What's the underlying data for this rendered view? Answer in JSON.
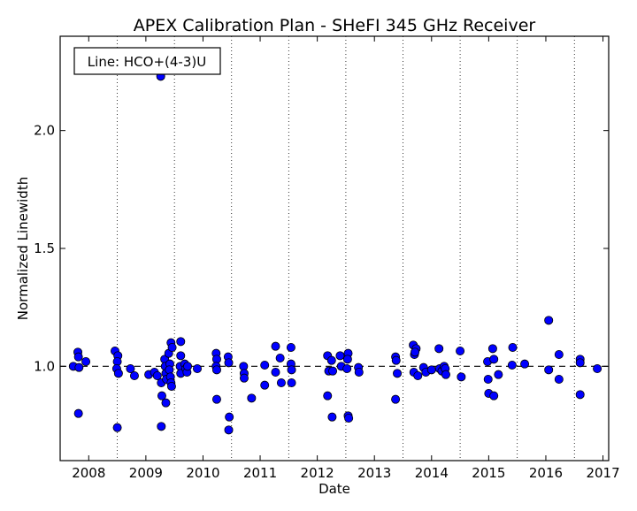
{
  "chart_data": {
    "type": "scatter",
    "title": "APEX Calibration Plan - SHeFI 345 GHz Receiver",
    "xlabel": "Date",
    "ylabel": "Normalized Linewidth",
    "annotation": "Line: HCO+(4-3)U",
    "xlim": [
      2007.5,
      2017.1
    ],
    "ylim": [
      0.6,
      2.4
    ],
    "xticks": [
      2008,
      2009,
      2010,
      2011,
      2012,
      2013,
      2014,
      2015,
      2016,
      2017
    ],
    "xtick_labels": [
      "2008",
      "2009",
      "2010",
      "2011",
      "2012",
      "2013",
      "2014",
      "2015",
      "2016",
      "2017"
    ],
    "yticks": [
      1.0,
      1.5,
      2.0
    ],
    "ytick_labels": [
      "1.0",
      "1.5",
      "2.0"
    ],
    "reference_line": 1.0,
    "vertical_gridlines": [
      2008.5,
      2009.5,
      2010.5,
      2011.5,
      2012.5,
      2013.5,
      2014.5,
      2015.5,
      2016.5
    ],
    "marker_color": "#0000ff",
    "points": [
      {
        "x": 2007.73,
        "y": 1.0
      },
      {
        "x": 2007.81,
        "y": 1.06
      },
      {
        "x": 2007.82,
        "y": 1.04
      },
      {
        "x": 2007.83,
        "y": 0.995
      },
      {
        "x": 2007.82,
        "y": 0.8
      },
      {
        "x": 2007.95,
        "y": 1.02
      },
      {
        "x": 2008.46,
        "y": 1.065
      },
      {
        "x": 2008.51,
        "y": 1.045
      },
      {
        "x": 2008.5,
        "y": 1.02
      },
      {
        "x": 2008.49,
        "y": 0.99
      },
      {
        "x": 2008.52,
        "y": 0.97
      },
      {
        "x": 2008.5,
        "y": 0.74
      },
      {
        "x": 2008.73,
        "y": 0.99
      },
      {
        "x": 2008.8,
        "y": 0.96
      },
      {
        "x": 2009.05,
        "y": 0.965
      },
      {
        "x": 2009.15,
        "y": 0.975
      },
      {
        "x": 2009.2,
        "y": 0.96
      },
      {
        "x": 2009.26,
        "y": 2.23
      },
      {
        "x": 2009.27,
        "y": 0.93
      },
      {
        "x": 2009.28,
        "y": 0.875
      },
      {
        "x": 2009.27,
        "y": 0.745
      },
      {
        "x": 2009.33,
        "y": 1.03
      },
      {
        "x": 2009.34,
        "y": 1.0
      },
      {
        "x": 2009.35,
        "y": 0.97
      },
      {
        "x": 2009.36,
        "y": 0.945
      },
      {
        "x": 2009.35,
        "y": 0.845
      },
      {
        "x": 2009.4,
        "y": 1.055
      },
      {
        "x": 2009.42,
        "y": 1.01
      },
      {
        "x": 2009.41,
        "y": 0.985
      },
      {
        "x": 2009.43,
        "y": 0.955
      },
      {
        "x": 2009.44,
        "y": 0.93
      },
      {
        "x": 2009.44,
        "y": 1.1
      },
      {
        "x": 2009.45,
        "y": 0.915
      },
      {
        "x": 2009.46,
        "y": 1.08
      },
      {
        "x": 2009.61,
        "y": 1.105
      },
      {
        "x": 2009.61,
        "y": 1.045
      },
      {
        "x": 2009.6,
        "y": 1.0
      },
      {
        "x": 2009.61,
        "y": 0.97
      },
      {
        "x": 2009.68,
        "y": 1.01
      },
      {
        "x": 2009.7,
        "y": 0.99
      },
      {
        "x": 2009.72,
        "y": 0.975
      },
      {
        "x": 2009.73,
        "y": 1.0
      },
      {
        "x": 2009.9,
        "y": 0.99
      },
      {
        "x": 2010.23,
        "y": 1.055
      },
      {
        "x": 2010.24,
        "y": 1.03
      },
      {
        "x": 2010.23,
        "y": 1.0
      },
      {
        "x": 2010.24,
        "y": 0.985
      },
      {
        "x": 2010.24,
        "y": 0.86
      },
      {
        "x": 2010.44,
        "y": 1.04
      },
      {
        "x": 2010.45,
        "y": 1.015
      },
      {
        "x": 2010.46,
        "y": 0.785
      },
      {
        "x": 2010.45,
        "y": 0.73
      },
      {
        "x": 2010.71,
        "y": 1.0
      },
      {
        "x": 2010.72,
        "y": 0.97
      },
      {
        "x": 2010.72,
        "y": 0.95
      },
      {
        "x": 2010.85,
        "y": 0.865
      },
      {
        "x": 2011.08,
        "y": 1.005
      },
      {
        "x": 2011.08,
        "y": 0.92
      },
      {
        "x": 2011.27,
        "y": 1.085
      },
      {
        "x": 2011.27,
        "y": 0.975
      },
      {
        "x": 2011.35,
        "y": 1.035
      },
      {
        "x": 2011.37,
        "y": 0.93
      },
      {
        "x": 2011.54,
        "y": 1.08
      },
      {
        "x": 2011.54,
        "y": 1.01
      },
      {
        "x": 2011.55,
        "y": 0.985
      },
      {
        "x": 2011.55,
        "y": 0.93
      },
      {
        "x": 2012.18,
        "y": 1.045
      },
      {
        "x": 2012.2,
        "y": 0.98
      },
      {
        "x": 2012.18,
        "y": 0.875
      },
      {
        "x": 2012.25,
        "y": 1.025
      },
      {
        "x": 2012.27,
        "y": 0.98
      },
      {
        "x": 2012.26,
        "y": 0.785
      },
      {
        "x": 2012.4,
        "y": 1.045
      },
      {
        "x": 2012.42,
        "y": 1.0
      },
      {
        "x": 2012.54,
        "y": 1.055
      },
      {
        "x": 2012.53,
        "y": 1.03
      },
      {
        "x": 2012.52,
        "y": 0.99
      },
      {
        "x": 2012.54,
        "y": 0.79
      },
      {
        "x": 2012.55,
        "y": 0.78
      },
      {
        "x": 2012.72,
        "y": 0.995
      },
      {
        "x": 2012.73,
        "y": 0.975
      },
      {
        "x": 2013.37,
        "y": 1.04
      },
      {
        "x": 2013.38,
        "y": 1.025
      },
      {
        "x": 2013.4,
        "y": 0.97
      },
      {
        "x": 2013.37,
        "y": 0.86
      },
      {
        "x": 2013.68,
        "y": 1.09
      },
      {
        "x": 2013.73,
        "y": 1.075
      },
      {
        "x": 2013.7,
        "y": 1.05
      },
      {
        "x": 2013.71,
        "y": 1.06
      },
      {
        "x": 2013.69,
        "y": 0.975
      },
      {
        "x": 2013.76,
        "y": 0.96
      },
      {
        "x": 2013.86,
        "y": 0.995
      },
      {
        "x": 2013.9,
        "y": 0.975
      },
      {
        "x": 2014.0,
        "y": 0.985
      },
      {
        "x": 2014.13,
        "y": 1.075
      },
      {
        "x": 2014.14,
        "y": 0.99
      },
      {
        "x": 2014.18,
        "y": 0.98
      },
      {
        "x": 2014.22,
        "y": 1.0
      },
      {
        "x": 2014.24,
        "y": 0.99
      },
      {
        "x": 2014.25,
        "y": 0.965
      },
      {
        "x": 2014.5,
        "y": 1.065
      },
      {
        "x": 2014.52,
        "y": 0.955
      },
      {
        "x": 2014.98,
        "y": 1.02
      },
      {
        "x": 2014.99,
        "y": 0.945
      },
      {
        "x": 2015.0,
        "y": 0.885
      },
      {
        "x": 2015.07,
        "y": 1.075
      },
      {
        "x": 2015.09,
        "y": 1.03
      },
      {
        "x": 2015.09,
        "y": 0.875
      },
      {
        "x": 2015.17,
        "y": 0.965
      },
      {
        "x": 2015.42,
        "y": 1.08
      },
      {
        "x": 2015.41,
        "y": 1.005
      },
      {
        "x": 2015.63,
        "y": 1.01
      },
      {
        "x": 2016.05,
        "y": 1.195
      },
      {
        "x": 2016.05,
        "y": 0.985
      },
      {
        "x": 2016.23,
        "y": 1.05
      },
      {
        "x": 2016.23,
        "y": 0.945
      },
      {
        "x": 2016.6,
        "y": 1.03
      },
      {
        "x": 2016.6,
        "y": 1.015
      },
      {
        "x": 2016.6,
        "y": 0.88
      },
      {
        "x": 2016.9,
        "y": 0.99
      }
    ]
  }
}
